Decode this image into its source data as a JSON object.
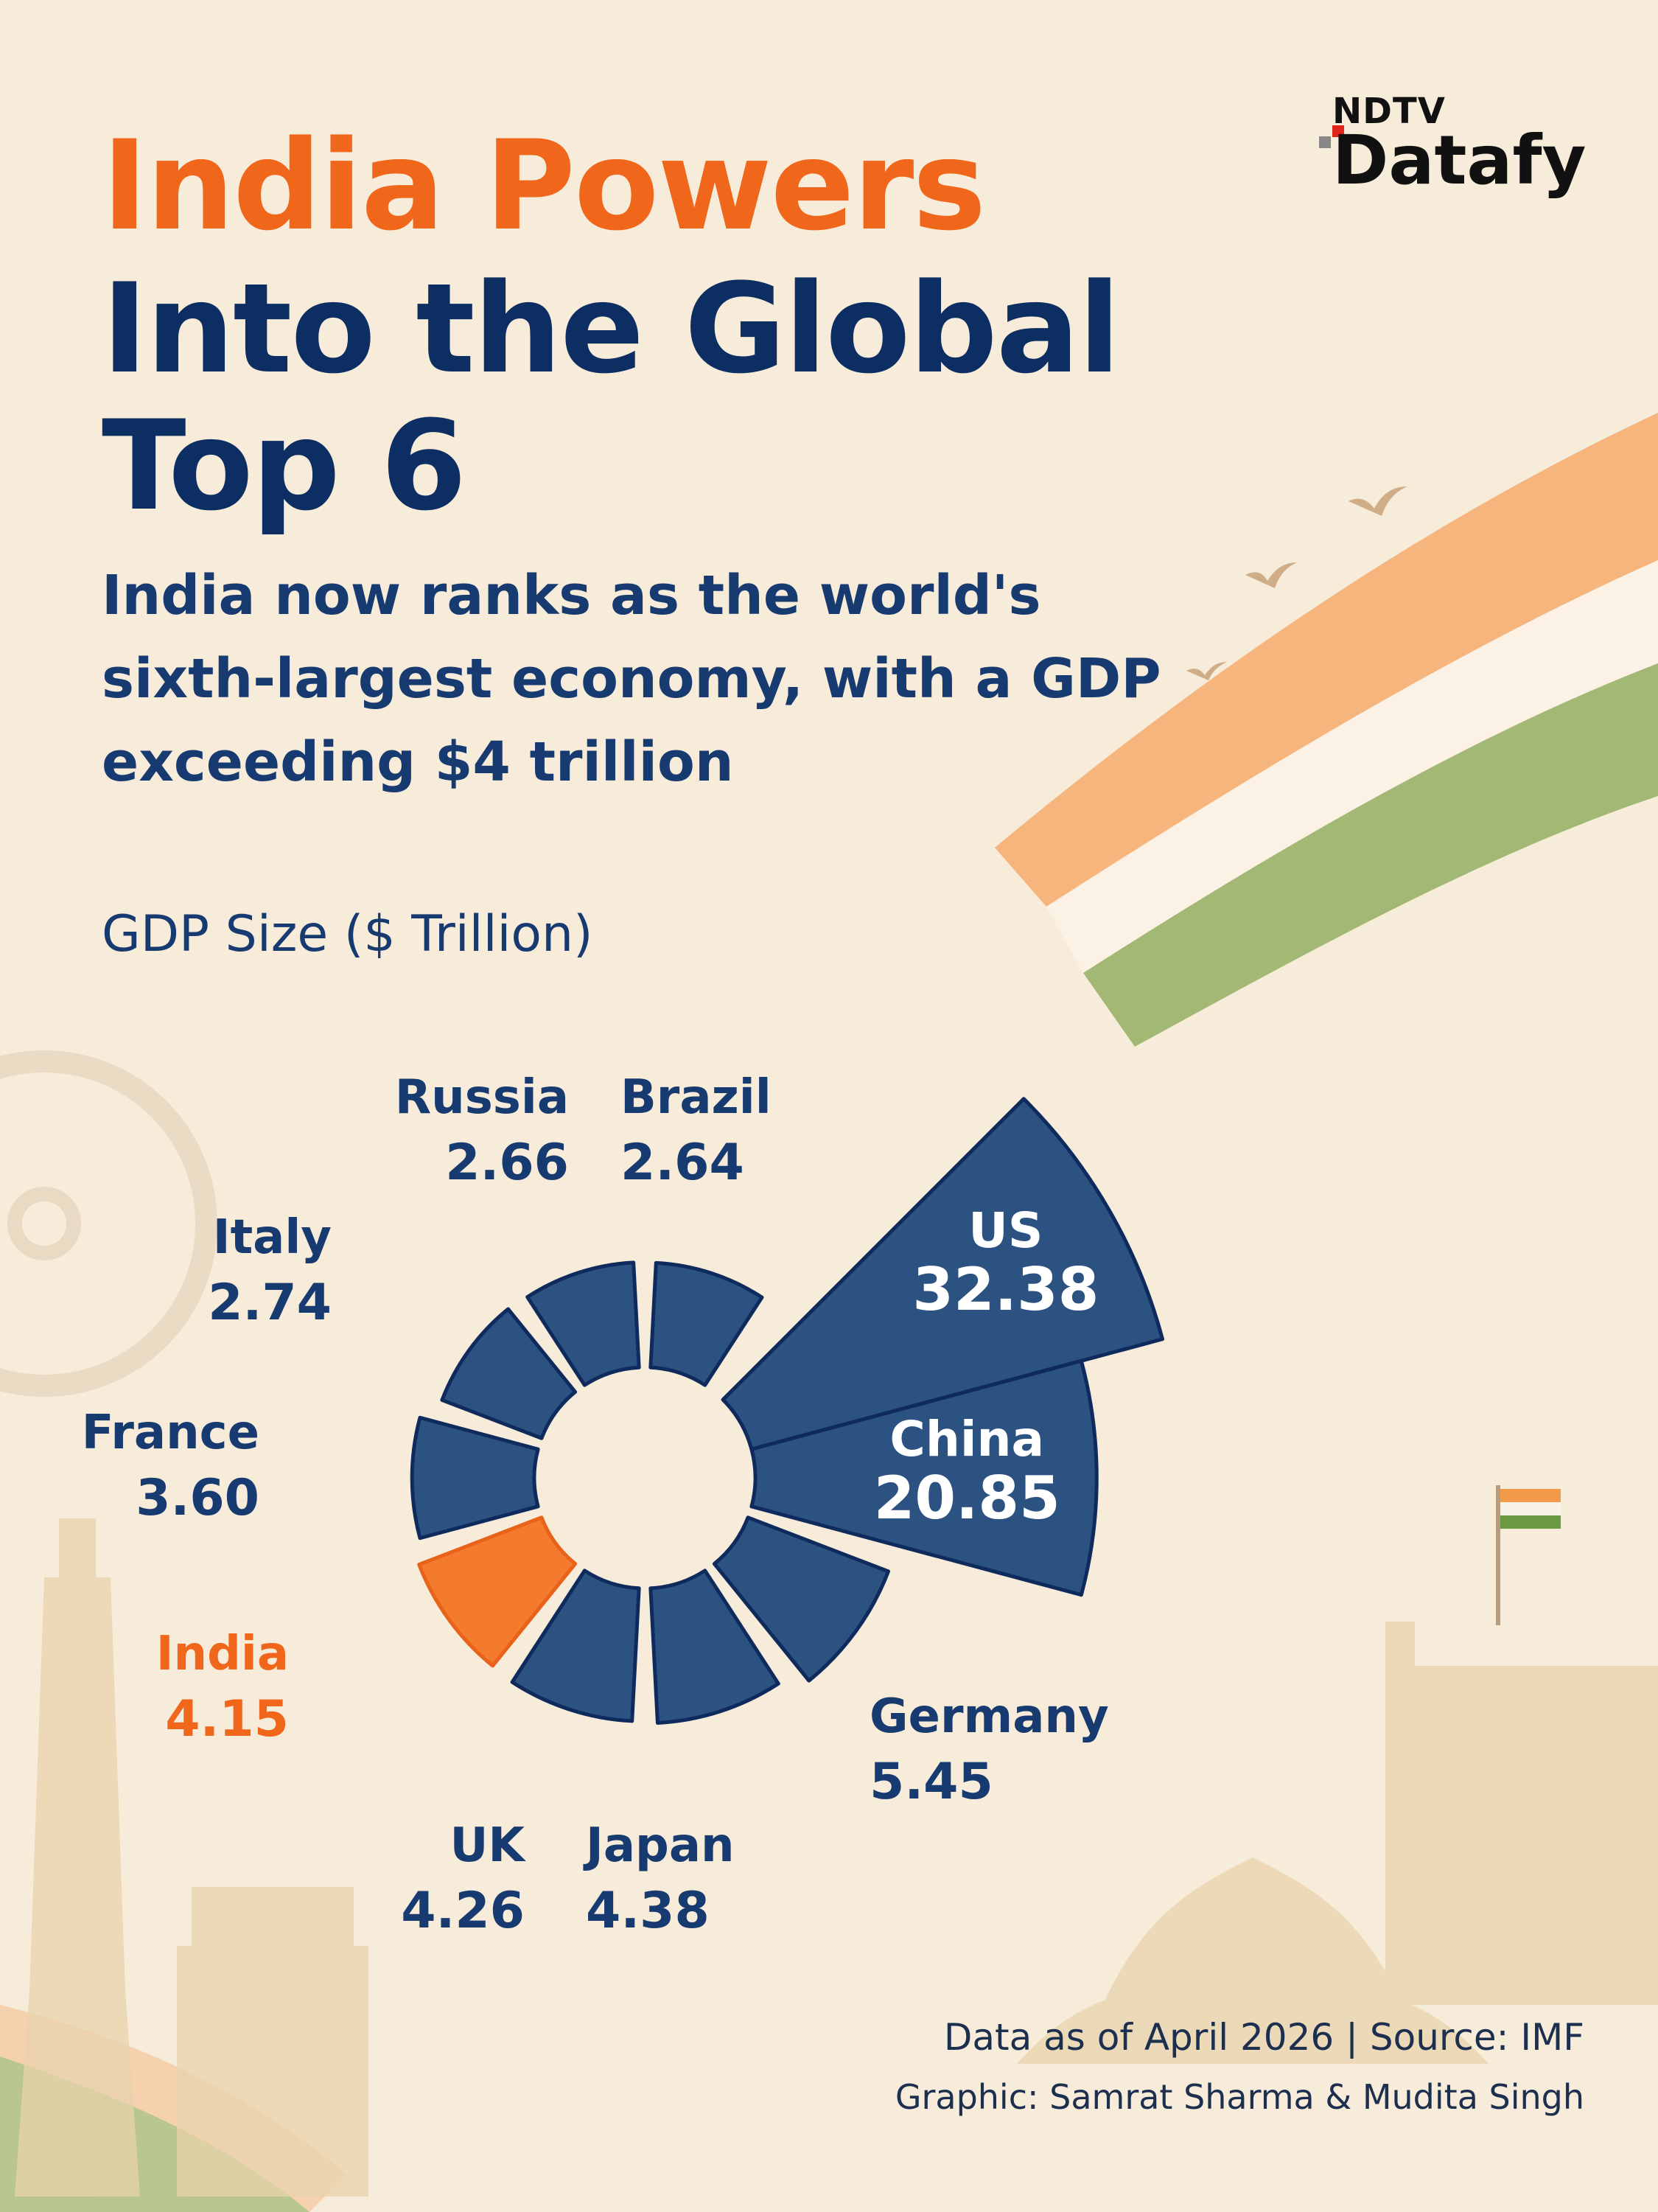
{
  "header": {
    "title_line1": "India Powers",
    "title_line2": "Into the Global",
    "title_line3": "Top 6",
    "subtitle": "India now ranks as the world's sixth-largest economy, with a GDP exceeding $4 trillion",
    "unit_label": "GDP Size ($ Trillion)"
  },
  "brand": {
    "line1": "NDTV",
    "line2": "Datafy"
  },
  "colors": {
    "title_orange": "#f0661a",
    "navy": "#0d2e63",
    "bar_fill": "#2c5282",
    "bar_stroke": "#0f2b5e",
    "highlight_fill": "#f47a2e",
    "highlight_stroke": "#e8621a",
    "background": "#f7ecd9"
  },
  "chart_data": {
    "type": "bar",
    "subtype": "radial",
    "ylabel": "GDP Size ($ Trillion)",
    "categories": [
      "US",
      "China",
      "Germany",
      "Japan",
      "UK",
      "India",
      "France",
      "Italy",
      "Russia",
      "Brazil"
    ],
    "values": [
      32.38,
      20.85,
      5.45,
      4.38,
      4.26,
      4.15,
      3.6,
      2.74,
      2.66,
      2.64
    ],
    "value_labels": [
      "32.38",
      "20.85",
      "5.45",
      "4.38",
      "4.26",
      "4.15",
      "3.60",
      "2.74",
      "2.66",
      "2.64"
    ],
    "highlight": "India"
  },
  "footer": {
    "line1": "Data as of April 2026  |  Source: IMF",
    "line2": "Graphic: Samrat Sharma & Mudita Singh"
  }
}
